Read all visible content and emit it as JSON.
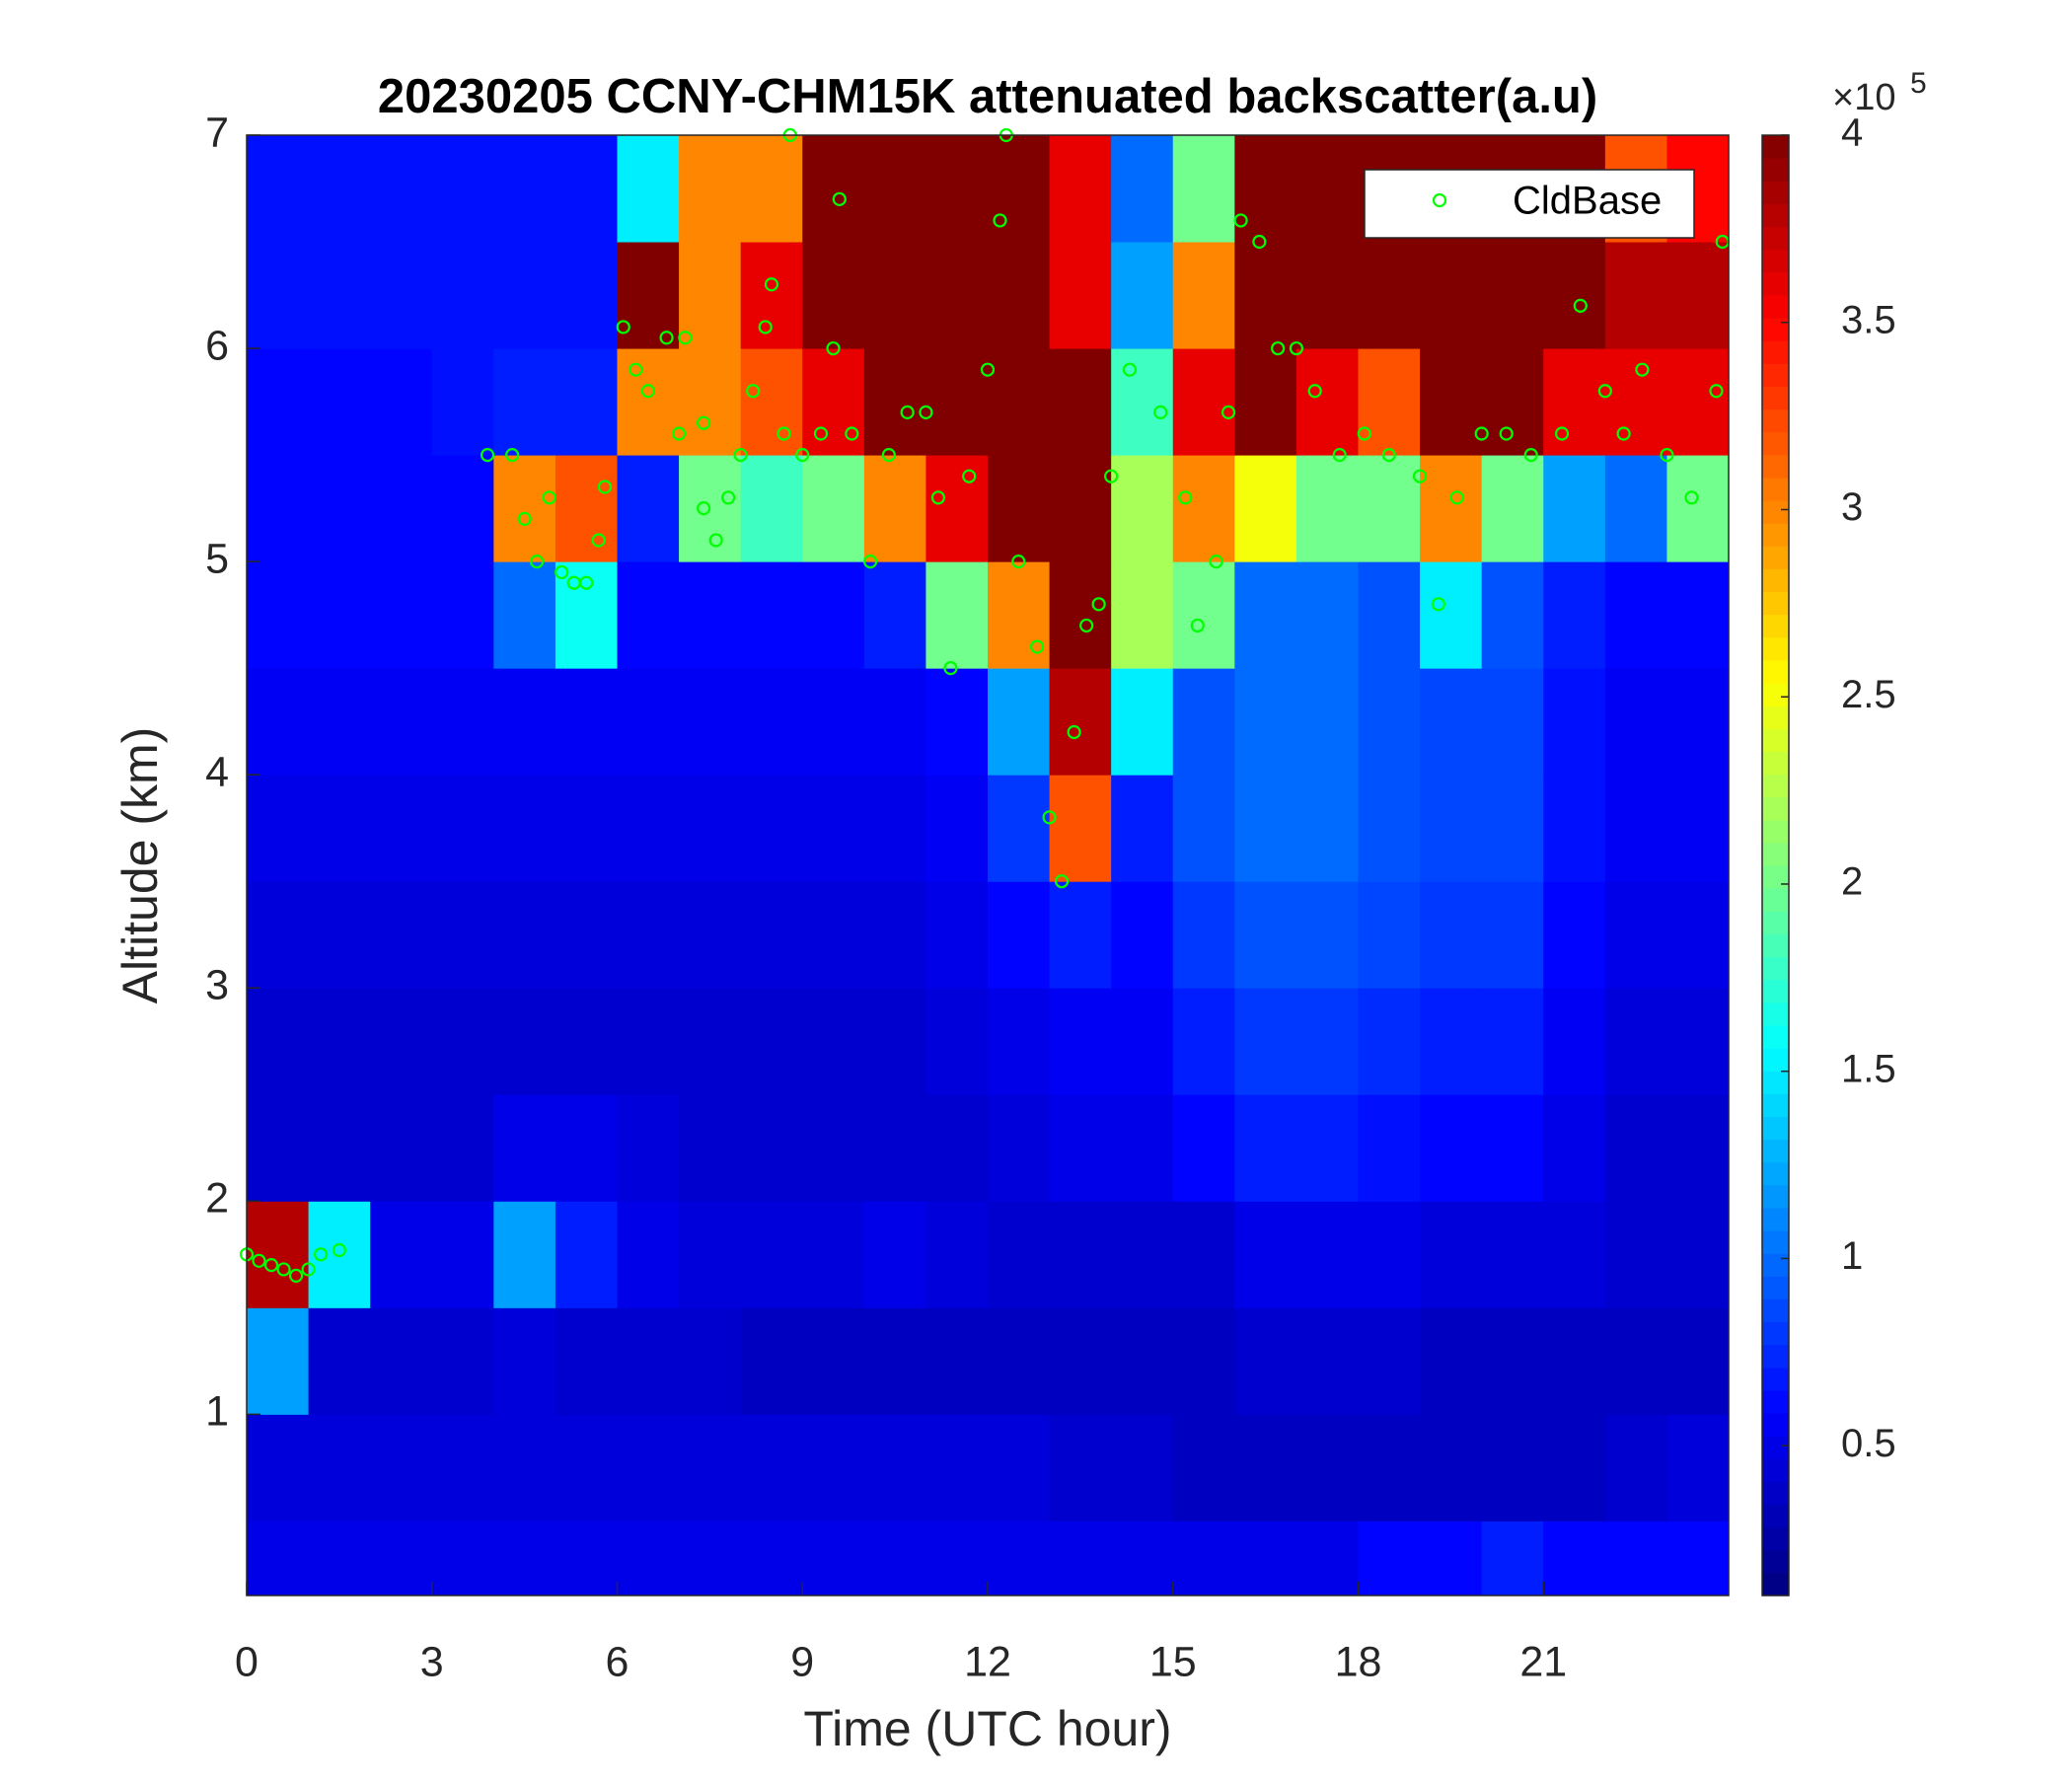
{
  "chart_data": {
    "type": "heatmap",
    "title": "20230205 CCNY-CHM15K attenuated backscatter(a.u)",
    "xlabel": "Time (UTC hour)",
    "ylabel": "Altitude (km)",
    "xlim": [
      0,
      24
    ],
    "xticks": [
      0,
      3,
      6,
      9,
      12,
      15,
      18,
      21
    ],
    "ylim": [
      0.15,
      7
    ],
    "yticks": [
      1,
      2,
      3,
      4,
      5,
      6,
      7
    ],
    "x_edges": [
      0,
      1,
      2,
      3,
      4,
      5,
      6,
      7,
      8,
      9,
      10,
      11,
      12,
      13,
      14,
      15,
      16,
      17,
      18,
      19,
      20,
      21,
      22,
      23,
      24
    ],
    "y_edges": [
      0.15,
      0.5,
      1,
      1.5,
      2,
      2.5,
      3,
      3.5,
      4,
      4.5,
      5,
      5.5,
      6,
      6.5,
      7
    ],
    "colormap": "jet",
    "zlim": [
      0.1,
      4
    ],
    "zticks": [
      0.5,
      1,
      1.5,
      2,
      2.5,
      3,
      3.5,
      4
    ],
    "colorbar_multiplier": "×10",
    "colorbar_exponent": "5",
    "z": [
      [
        0.5,
        0.5,
        0.5,
        0.5,
        0.5,
        0.5,
        0.5,
        0.5,
        0.5,
        0.5,
        0.5,
        0.5,
        0.5,
        0.5,
        0.5,
        0.5,
        0.5,
        0.5,
        0.6,
        0.6,
        0.7,
        0.6,
        0.6,
        0.6
      ],
      [
        0.45,
        0.45,
        0.45,
        0.45,
        0.45,
        0.45,
        0.45,
        0.45,
        0.45,
        0.45,
        0.45,
        0.45,
        0.45,
        0.4,
        0.4,
        0.35,
        0.35,
        0.35,
        0.35,
        0.35,
        0.35,
        0.35,
        0.4,
        0.45
      ],
      [
        1.2,
        0.4,
        0.4,
        0.4,
        0.45,
        0.4,
        0.4,
        0.4,
        0.35,
        0.35,
        0.35,
        0.35,
        0.35,
        0.35,
        0.35,
        0.35,
        0.4,
        0.4,
        0.4,
        0.35,
        0.35,
        0.35,
        0.35,
        0.35
      ],
      [
        3.8,
        1.5,
        0.5,
        0.5,
        1.2,
        0.7,
        0.5,
        0.45,
        0.45,
        0.45,
        0.5,
        0.45,
        0.4,
        0.4,
        0.4,
        0.4,
        0.5,
        0.5,
        0.5,
        0.45,
        0.45,
        0.45,
        0.4,
        0.4
      ],
      [
        0.4,
        0.4,
        0.4,
        0.4,
        0.5,
        0.5,
        0.45,
        0.4,
        0.4,
        0.4,
        0.4,
        0.4,
        0.45,
        0.5,
        0.5,
        0.6,
        0.7,
        0.7,
        0.65,
        0.6,
        0.6,
        0.5,
        0.4,
        0.4
      ],
      [
        0.4,
        0.4,
        0.4,
        0.4,
        0.4,
        0.4,
        0.4,
        0.4,
        0.4,
        0.4,
        0.4,
        0.45,
        0.5,
        0.55,
        0.55,
        0.7,
        0.8,
        0.8,
        0.75,
        0.7,
        0.7,
        0.55,
        0.45,
        0.45
      ],
      [
        0.45,
        0.45,
        0.45,
        0.45,
        0.45,
        0.45,
        0.45,
        0.45,
        0.45,
        0.45,
        0.45,
        0.5,
        0.6,
        0.7,
        0.6,
        0.8,
        0.9,
        0.9,
        0.85,
        0.8,
        0.8,
        0.6,
        0.5,
        0.5
      ],
      [
        0.5,
        0.5,
        0.5,
        0.5,
        0.5,
        0.5,
        0.5,
        0.5,
        0.5,
        0.5,
        0.5,
        0.55,
        0.8,
        3.2,
        0.7,
        0.9,
        1.0,
        1.0,
        0.9,
        0.85,
        0.85,
        0.65,
        0.55,
        0.55
      ],
      [
        0.55,
        0.55,
        0.55,
        0.55,
        0.55,
        0.55,
        0.55,
        0.55,
        0.55,
        0.55,
        0.55,
        0.6,
        1.2,
        3.8,
        1.5,
        0.9,
        1.0,
        1.0,
        0.9,
        0.85,
        0.85,
        0.65,
        0.55,
        0.55
      ],
      [
        0.6,
        0.6,
        0.6,
        0.6,
        1.0,
        1.6,
        0.6,
        0.6,
        0.6,
        0.6,
        0.7,
        2.0,
        3.0,
        4.0,
        2.2,
        2.0,
        1.0,
        1.0,
        0.9,
        1.5,
        0.9,
        0.7,
        0.6,
        0.6
      ],
      [
        0.6,
        0.6,
        0.6,
        0.6,
        3.0,
        3.2,
        0.7,
        2.0,
        1.8,
        2.0,
        3.0,
        3.6,
        4.0,
        4.0,
        2.2,
        3.0,
        2.5,
        2.0,
        2.0,
        3.0,
        2.0,
        1.2,
        1.0,
        2.0
      ],
      [
        0.6,
        0.6,
        0.6,
        0.65,
        0.7,
        0.7,
        3.0,
        3.0,
        3.2,
        3.6,
        4.0,
        4.0,
        4.0,
        4.0,
        1.8,
        3.6,
        4.0,
        3.6,
        3.2,
        4.0,
        4.0,
        3.6,
        3.6,
        3.6
      ],
      [
        0.65,
        0.65,
        0.65,
        0.65,
        0.65,
        0.65,
        4.0,
        3.0,
        3.6,
        4.0,
        4.0,
        4.0,
        4.0,
        3.6,
        1.2,
        3.0,
        4.0,
        4.0,
        4.0,
        4.0,
        4.0,
        4.0,
        3.8,
        3.8
      ],
      [
        0.65,
        0.65,
        0.65,
        0.65,
        0.65,
        0.65,
        1.5,
        3.0,
        3.0,
        4.0,
        4.0,
        4.0,
        4.0,
        3.6,
        1.0,
        2.0,
        4.0,
        4.0,
        4.0,
        4.0,
        4.0,
        4.0,
        3.2,
        3.5
      ]
    ],
    "legend": "upper right",
    "series": [
      {
        "name": "CldBase",
        "type": "scatter",
        "color": "#00ff00",
        "x": [
          0,
          0.2,
          0.4,
          0.6,
          0.8,
          1.0,
          1.2,
          1.5,
          3.9,
          4.3,
          4.5,
          4.7,
          4.9,
          5.1,
          5.3,
          5.5,
          5.7,
          5.8,
          6.1,
          6.3,
          6.5,
          6.8,
          7.1,
          7.0,
          7.4,
          7.4,
          7.6,
          7.8,
          8.0,
          8.2,
          8.4,
          8.5,
          8.8,
          8.7,
          9.0,
          9.3,
          9.5,
          9.6,
          9.8,
          10.1,
          10.4,
          10.7,
          11.0,
          11.2,
          11.4,
          11.7,
          12.0,
          12.2,
          12.3,
          12.5,
          12.8,
          13.0,
          13.2,
          13.4,
          13.6,
          13.8,
          14.0,
          14.3,
          14.8,
          15.2,
          15.4,
          15.7,
          15.9,
          16.1,
          16.4,
          16.7,
          17.0,
          17.3,
          17.7,
          18.1,
          18.5,
          19.0,
          19.3,
          19.6,
          20.0,
          20.4,
          20.8,
          21.3,
          21.6,
          22.0,
          22.3,
          22.6,
          23.0,
          23.4,
          23.8,
          23.9
        ],
        "values": [
          1.75,
          1.72,
          1.7,
          1.68,
          1.65,
          1.68,
          1.75,
          1.77,
          5.5,
          5.5,
          5.2,
          5.0,
          5.3,
          4.95,
          4.9,
          4.9,
          5.1,
          5.35,
          6.1,
          5.9,
          5.8,
          6.05,
          6.05,
          5.6,
          5.65,
          5.25,
          5.1,
          5.3,
          5.5,
          5.8,
          6.1,
          6.3,
          7.0,
          5.6,
          5.5,
          5.6,
          6.0,
          6.7,
          5.6,
          5.0,
          5.5,
          5.7,
          5.7,
          5.3,
          4.5,
          5.4,
          5.9,
          6.6,
          7.0,
          5.0,
          4.6,
          3.8,
          3.5,
          4.2,
          4.7,
          4.8,
          5.4,
          5.9,
          5.7,
          5.3,
          4.7,
          5.0,
          5.7,
          6.6,
          6.5,
          6.0,
          6.0,
          5.8,
          5.5,
          5.6,
          5.5,
          5.4,
          4.8,
          5.3,
          5.6,
          5.6,
          5.5,
          5.6,
          6.2,
          5.8,
          5.6,
          5.9,
          5.5,
          5.3,
          5.8,
          6.5
        ]
      }
    ]
  }
}
